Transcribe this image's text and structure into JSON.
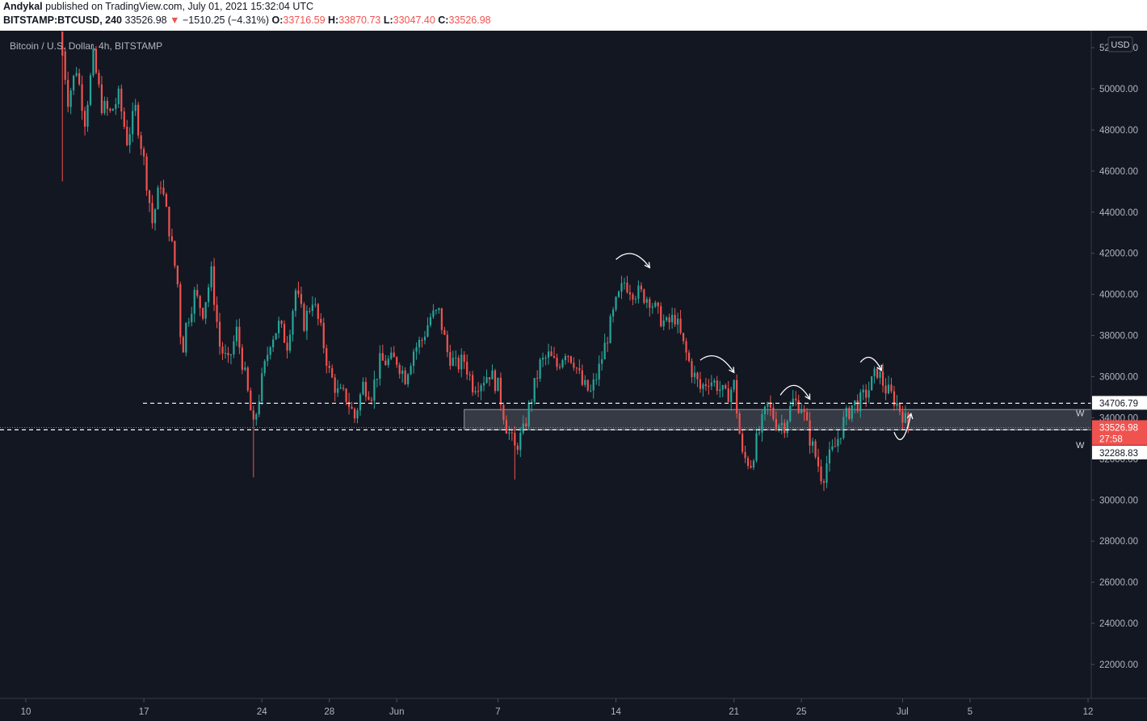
{
  "header": {
    "author": "Andykal",
    "published": "published on TradingView.com, July 01, 2021 15:32:04 UTC",
    "symbol": "BITSTAMP:BTCUSD, 240",
    "last": "33526.98",
    "change_arrow": "▼",
    "change": "−1510.25 (−4.31%)",
    "o_label": "O:",
    "o_value": "33716.59",
    "h_label": "H:",
    "h_value": "33870.73",
    "l_label": "L:",
    "l_value": "33047.40",
    "c_label": "C:",
    "c_value": "33526.98"
  },
  "colors": {
    "background": "#131722",
    "up": "#26a69a",
    "down": "#ef5350",
    "axis_text": "#b2b5be",
    "grid": "#2a2e39"
  },
  "chart_data": {
    "type": "candlestick",
    "title": "Bitcoin / U.S. Dollar, 4h, BITSTAMP",
    "currency": "USD",
    "ylim": [
      20500,
      53200
    ],
    "x_range_days": [
      "2021-05-10",
      "2021-07-12"
    ],
    "y_ticks": [
      "52000.00",
      "50000.00",
      "48000.00",
      "46000.00",
      "44000.00",
      "42000.00",
      "40000.00",
      "38000.00",
      "36000.00",
      "34000.00",
      "32000.00",
      "30000.00",
      "28000.00",
      "26000.00",
      "24000.00",
      "22000.00"
    ],
    "y_tick_values": [
      52000,
      50000,
      48000,
      46000,
      44000,
      42000,
      40000,
      38000,
      36000,
      34000,
      32000,
      30000,
      28000,
      26000,
      24000,
      22000
    ],
    "x_ticks": [
      {
        "label": "10",
        "day": "2021-05-10"
      },
      {
        "label": "17",
        "day": "2021-05-17"
      },
      {
        "label": "24",
        "day": "2021-05-24"
      },
      {
        "label": "28",
        "day": "2021-05-28"
      },
      {
        "label": "Jun",
        "day": "2021-06-01"
      },
      {
        "label": "7",
        "day": "2021-06-07"
      },
      {
        "label": "14",
        "day": "2021-06-14"
      },
      {
        "label": "21",
        "day": "2021-06-21"
      },
      {
        "label": "25",
        "day": "2021-06-25"
      },
      {
        "label": "Jul",
        "day": "2021-07-01"
      },
      {
        "label": "5",
        "day": "2021-07-05"
      },
      {
        "label": "12",
        "day": "2021-07-12"
      }
    ],
    "price_path": [
      [
        "2021-05-12",
        53000
      ],
      [
        "2021-05-12 12:00",
        49500
      ],
      [
        "2021-05-13",
        51000
      ],
      [
        "2021-05-13 12:00",
        48500
      ],
      [
        "2021-05-14",
        51500
      ],
      [
        "2021-05-14 12:00",
        49200
      ],
      [
        "2021-05-15",
        48800
      ],
      [
        "2021-05-15 12:00",
        49600
      ],
      [
        "2021-05-16",
        47500
      ],
      [
        "2021-05-16 12:00",
        49000
      ],
      [
        "2021-05-17",
        46500
      ],
      [
        "2021-05-17 12:00",
        43500
      ],
      [
        "2021-05-18",
        45500
      ],
      [
        "2021-05-18 12:00",
        43200
      ],
      [
        "2021-05-19",
        40500
      ],
      [
        "2021-05-19 06:00",
        37000
      ],
      [
        "2021-05-19 12:00",
        38500
      ],
      [
        "2021-05-20",
        40000
      ],
      [
        "2021-05-20 12:00",
        39200
      ],
      [
        "2021-05-21",
        41000
      ],
      [
        "2021-05-21 12:00",
        37500
      ],
      [
        "2021-05-22",
        36600
      ],
      [
        "2021-05-22 12:00",
        38200
      ],
      [
        "2021-05-23",
        36000
      ],
      [
        "2021-05-23 12:00",
        33500
      ],
      [
        "2021-05-24",
        35800
      ],
      [
        "2021-05-24 12:00",
        37800
      ],
      [
        "2021-05-25",
        38500
      ],
      [
        "2021-05-25 12:00",
        37600
      ],
      [
        "2021-05-26",
        40200
      ],
      [
        "2021-05-26 12:00",
        38600
      ],
      [
        "2021-05-27",
        39800
      ],
      [
        "2021-05-27 12:00",
        38200
      ],
      [
        "2021-05-28",
        36200
      ],
      [
        "2021-05-28 12:00",
        35200
      ],
      [
        "2021-05-29",
        35000
      ],
      [
        "2021-05-29 12:00",
        34000
      ],
      [
        "2021-05-30",
        35600
      ],
      [
        "2021-05-30 12:00",
        35200
      ],
      [
        "2021-05-31",
        36700
      ],
      [
        "2021-06-01",
        36800
      ],
      [
        "2021-06-01 12:00",
        36000
      ],
      [
        "2021-06-02",
        37300
      ],
      [
        "2021-06-02 12:00",
        37800
      ],
      [
        "2021-06-03",
        38900
      ],
      [
        "2021-06-03 12:00",
        39100
      ],
      [
        "2021-06-04",
        37200
      ],
      [
        "2021-06-04 12:00",
        36500
      ],
      [
        "2021-06-05",
        36800
      ],
      [
        "2021-06-05 12:00",
        35600
      ],
      [
        "2021-06-06",
        35800
      ],
      [
        "2021-06-06 12:00",
        36200
      ],
      [
        "2021-06-07",
        35500
      ],
      [
        "2021-06-07 12:00",
        33600
      ],
      [
        "2021-06-08",
        32500
      ],
      [
        "2021-06-08 12:00",
        33300
      ],
      [
        "2021-06-09",
        35000
      ],
      [
        "2021-06-09 12:00",
        36600
      ],
      [
        "2021-06-10",
        37000
      ],
      [
        "2021-06-10 12:00",
        36500
      ],
      [
        "2021-06-11",
        37300
      ],
      [
        "2021-06-11 12:00",
        36800
      ],
      [
        "2021-06-12",
        35600
      ],
      [
        "2021-06-12 12:00",
        35200
      ],
      [
        "2021-06-13",
        36400
      ],
      [
        "2021-06-13 12:00",
        38000
      ],
      [
        "2021-06-14",
        39500
      ],
      [
        "2021-06-14 12:00",
        40600
      ],
      [
        "2021-06-15",
        40200
      ],
      [
        "2021-06-15 12:00",
        40000
      ],
      [
        "2021-06-16",
        39800
      ],
      [
        "2021-06-16 12:00",
        39000
      ],
      [
        "2021-06-17",
        38500
      ],
      [
        "2021-06-17 12:00",
        38900
      ],
      [
        "2021-06-18",
        37500
      ],
      [
        "2021-06-18 12:00",
        36300
      ],
      [
        "2021-06-19",
        35400
      ],
      [
        "2021-06-19 12:00",
        35900
      ],
      [
        "2021-06-20",
        35600
      ],
      [
        "2021-06-20 12:00",
        35000
      ],
      [
        "2021-06-21",
        35600
      ],
      [
        "2021-06-21 06:00",
        33800
      ],
      [
        "2021-06-21 12:00",
        32100
      ],
      [
        "2021-06-22",
        31800
      ],
      [
        "2021-06-22 06:00",
        32600
      ],
      [
        "2021-06-22 12:00",
        33300
      ],
      [
        "2021-06-23",
        34600
      ],
      [
        "2021-06-23 12:00",
        33800
      ],
      [
        "2021-06-24",
        33700
      ],
      [
        "2021-06-24 12:00",
        34800
      ],
      [
        "2021-06-25",
        34600
      ],
      [
        "2021-06-25 12:00",
        33000
      ],
      [
        "2021-06-26",
        31700
      ],
      [
        "2021-06-26 06:00",
        31000
      ],
      [
        "2021-06-26 12:00",
        31800
      ],
      [
        "2021-06-27",
        32600
      ],
      [
        "2021-06-27 12:00",
        33800
      ],
      [
        "2021-06-28",
        34600
      ],
      [
        "2021-06-28 12:00",
        34800
      ],
      [
        "2021-06-29",
        35400
      ],
      [
        "2021-06-29 12:00",
        36300
      ],
      [
        "2021-06-30",
        35400
      ],
      [
        "2021-06-30 12:00",
        34900
      ],
      [
        "2021-07-01",
        34200
      ],
      [
        "2021-07-01 08:00",
        33527
      ]
    ],
    "wicks": [
      {
        "day": "2021-05-12 04:00",
        "low": 45500
      },
      {
        "day": "2021-05-19 06:00",
        "low": 30000,
        "high": 38000
      },
      {
        "day": "2021-05-23 12:00",
        "low": 31100
      },
      {
        "day": "2021-06-08",
        "low": 31000
      },
      {
        "day": "2021-06-22 06:00",
        "low": 28600
      },
      {
        "day": "2021-06-26 06:00",
        "low": 30100
      }
    ],
    "lines": [
      {
        "name": "resistance",
        "price": 34706.79,
        "label": "34706.79",
        "marker": "W"
      },
      {
        "name": "support",
        "price": 33413.19,
        "label": "33413.19",
        "marker": ""
      },
      {
        "name": "lower",
        "price": 32288.83,
        "label": "32288.83",
        "marker": "W"
      }
    ],
    "last_price": {
      "price": 33526.98,
      "label": "33526.98",
      "countdown": "27:58"
    },
    "zone": {
      "from_day": "2021-06-05",
      "low": 33413.19,
      "high": 34400
    },
    "arrows": [
      {
        "start": [
          "2021-06-14",
          41700
        ],
        "end": [
          "2021-06-16",
          41300
        ],
        "peak": 42200
      },
      {
        "start": [
          "2021-06-19",
          36800
        ],
        "end": [
          "2021-06-21",
          36200
        ],
        "peak": 37200
      },
      {
        "start": [
          "2021-06-23 18:00",
          35100
        ],
        "end": [
          "2021-06-25 12:00",
          34900
        ],
        "peak": 35900
      },
      {
        "start": [
          "2021-06-28 12:00",
          36700
        ],
        "end": [
          "2021-06-29 18:00",
          36300
        ],
        "peak": 37100
      },
      {
        "start": [
          "2021-06-30 12:00",
          33300
        ],
        "end": [
          "2021-07-01 12:00",
          34200
        ],
        "bottom": 32500
      }
    ]
  }
}
